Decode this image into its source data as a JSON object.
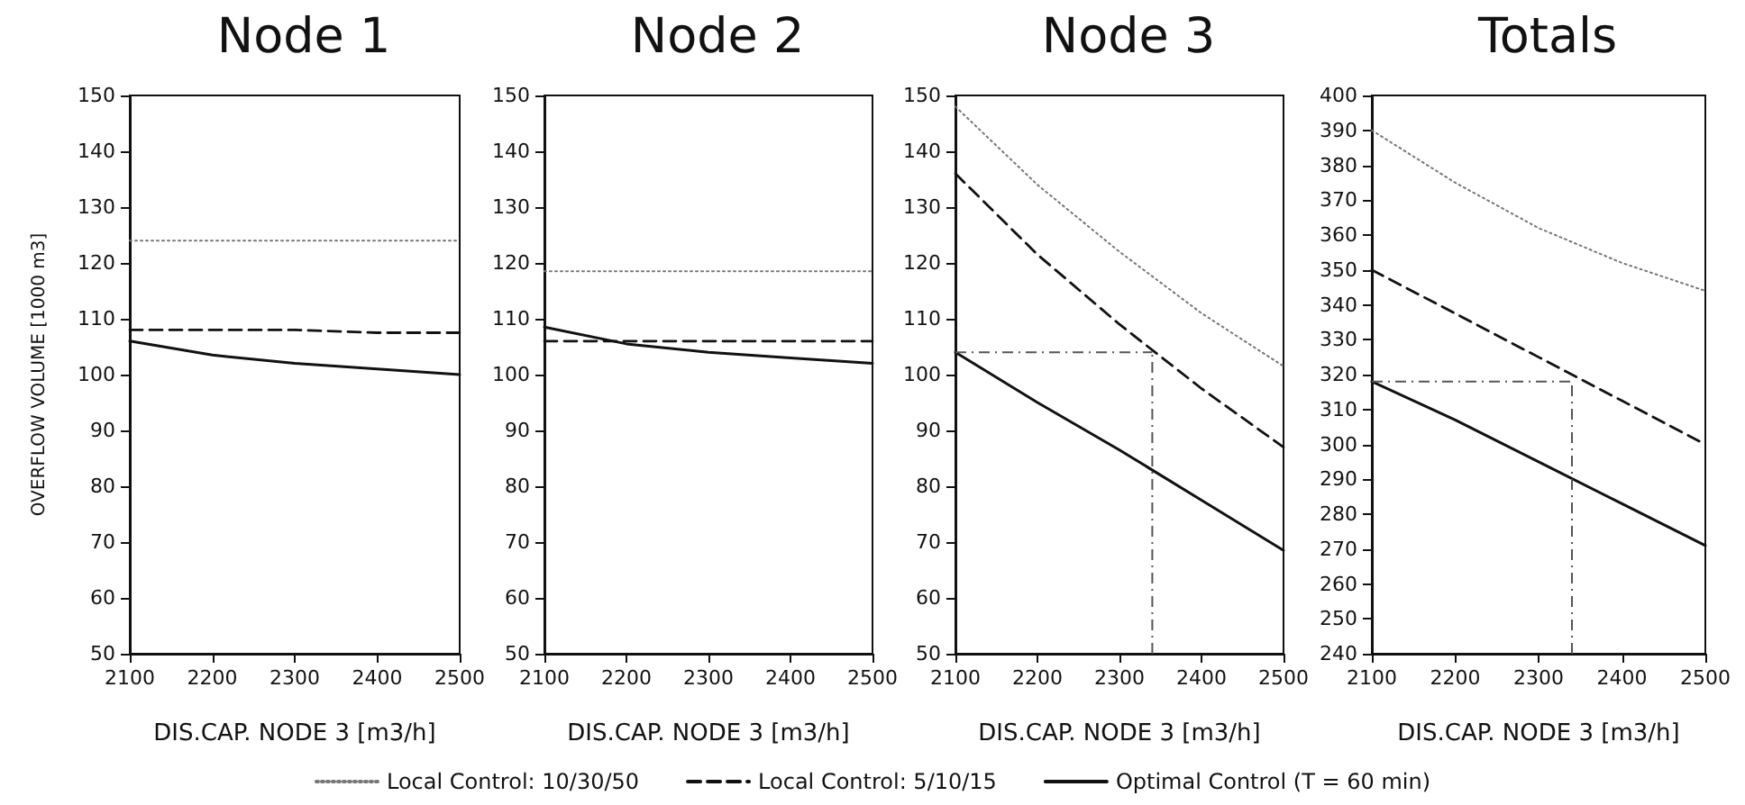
{
  "chart_data": [
    {
      "type": "line",
      "title": "Node 1",
      "xlabel": "DIS.CAP. NODE 3 [m3/h]",
      "ylabel": "OVERFLOW VOLUME [1000 m3]",
      "x": [
        2100,
        2200,
        2300,
        2400,
        2500
      ],
      "xlim": [
        2100,
        2500
      ],
      "xticks": [
        2100,
        2200,
        2300,
        2400,
        2500
      ],
      "ylim": [
        50,
        150
      ],
      "yticks": [
        50,
        60,
        70,
        80,
        90,
        100,
        110,
        120,
        130,
        140,
        150
      ],
      "legend": "bottom",
      "series": [
        {
          "name": "Local Control: 10/30/50",
          "color": "#777777",
          "line_style": "dotted",
          "values": [
            124,
            124,
            124,
            124,
            124
          ]
        },
        {
          "name": "Local Control: 5/10/15",
          "color": "#111111",
          "line_style": "dashed",
          "values": [
            108,
            108,
            108,
            107.5,
            107.5
          ]
        },
        {
          "name": "Optimal Control (T = 60 min)",
          "color": "#111111",
          "line_style": "solid",
          "values": [
            106,
            103.5,
            102,
            101,
            100
          ]
        }
      ]
    },
    {
      "type": "line",
      "title": "Node 2",
      "xlabel": "DIS.CAP. NODE 3 [m3/h]",
      "x": [
        2100,
        2200,
        2300,
        2400,
        2500
      ],
      "xlim": [
        2100,
        2500
      ],
      "xticks": [
        2100,
        2200,
        2300,
        2400,
        2500
      ],
      "ylim": [
        50,
        150
      ],
      "yticks": [
        50,
        60,
        70,
        80,
        90,
        100,
        110,
        120,
        130,
        140,
        150
      ],
      "series": [
        {
          "color": "#777777",
          "line_style": "dotted",
          "values": [
            118.5,
            118.5,
            118.5,
            118.5,
            118.5
          ]
        },
        {
          "color": "#111111",
          "line_style": "dashed",
          "values": [
            106,
            106,
            106,
            106,
            106
          ]
        },
        {
          "color": "#111111",
          "line_style": "solid",
          "values": [
            108.5,
            105.5,
            104,
            103,
            102
          ]
        }
      ]
    },
    {
      "type": "line",
      "title": "Node 3",
      "xlabel": "DIS.CAP. NODE 3 [m3/h]",
      "x": [
        2100,
        2200,
        2300,
        2400,
        2500
      ],
      "xlim": [
        2100,
        2500
      ],
      "xticks": [
        2100,
        2200,
        2300,
        2400,
        2500
      ],
      "ylim": [
        50,
        150
      ],
      "yticks": [
        50,
        60,
        70,
        80,
        90,
        100,
        110,
        120,
        130,
        140,
        150
      ],
      "series": [
        {
          "color": "#777777",
          "line_style": "dotted",
          "values": [
            148,
            134,
            122,
            111,
            101.5
          ]
        },
        {
          "color": "#111111",
          "line_style": "dashed",
          "values": [
            136,
            121.5,
            109,
            97.5,
            87
          ]
        },
        {
          "color": "#111111",
          "line_style": "solid",
          "values": [
            104,
            95,
            86.5,
            77.5,
            68.5
          ]
        }
      ],
      "ref_lines": [
        {
          "axis": "y",
          "value": 104,
          "color": "#555555",
          "line_style": "dashed"
        },
        {
          "axis": "x",
          "value": 2340,
          "color": "#555555",
          "line_style": "dashed"
        }
      ]
    },
    {
      "type": "line",
      "title": "Totals",
      "xlabel": "DIS.CAP. NODE 3 [m3/h]",
      "x": [
        2100,
        2200,
        2300,
        2400,
        2500
      ],
      "xlim": [
        2100,
        2500
      ],
      "xticks": [
        2100,
        2200,
        2300,
        2400,
        2500
      ],
      "ylim": [
        240,
        400
      ],
      "yticks": [
        240,
        250,
        260,
        270,
        280,
        290,
        300,
        310,
        320,
        330,
        340,
        350,
        360,
        370,
        380,
        390,
        400
      ],
      "series": [
        {
          "color": "#777777",
          "line_style": "dotted",
          "values": [
            390,
            375,
            362,
            352,
            344
          ]
        },
        {
          "color": "#111111",
          "line_style": "dashed",
          "values": [
            350,
            337.5,
            325,
            312.5,
            300
          ]
        },
        {
          "color": "#111111",
          "line_style": "solid",
          "values": [
            318,
            307,
            295,
            283,
            271
          ]
        }
      ],
      "ref_lines": [
        {
          "axis": "y",
          "value": 318,
          "color": "#555555",
          "line_style": "dashed"
        },
        {
          "axis": "x",
          "value": 2340,
          "color": "#555555",
          "line_style": "dashed"
        }
      ]
    }
  ]
}
